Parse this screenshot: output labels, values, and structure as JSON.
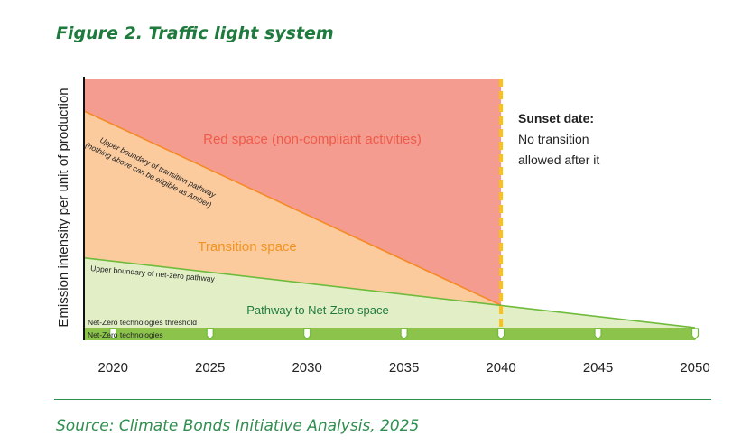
{
  "figure_title": "Figure 2. Traffic light system",
  "source": "Source: Climate Bonds Initiative Analysis, 2025",
  "colors": {
    "red_space": "#f59c90",
    "transition_space": "#fbcb9e",
    "netzero_space": "#e2efc6",
    "orange_line": "#f58a28",
    "green_line": "#6fbb3b",
    "green_band": "#8cc34a",
    "sunset_dash": "#f9c11b",
    "red_text": "#ee5b49",
    "orange_text": "#f29322",
    "green_text": "#1f7a3d"
  },
  "chart_data": {
    "type": "area",
    "title": "",
    "ylabel": "Emission intensity per unit of production",
    "xlabel": "",
    "x_ticks": [
      2020,
      2025,
      2030,
      2035,
      2040,
      2045,
      2050
    ],
    "xlim": [
      2018.5,
      2050
    ],
    "ylim": [
      0,
      100
    ],
    "y_ticks_shown": false,
    "grid": false,
    "series": [
      {
        "name": "Upper boundary of transition pathway",
        "x": [
          2018.5,
          2040
        ],
        "y": [
          87,
          9
        ]
      },
      {
        "name": "Upper boundary of net-zero pathway",
        "x": [
          2018.5,
          2050
        ],
        "y": [
          28,
          0
        ]
      }
    ],
    "sunset_year": 2040,
    "regions": {
      "red": "Red space (non-compliant activities)",
      "transition": "Transition space",
      "netzero": "Pathway to Net-Zero space"
    },
    "annotations": {
      "sunset_title": "Sunset date:",
      "sunset_line1": "No transition",
      "sunset_line2": "allowed after it",
      "transition_boundary_line1": "Upper boundary of transition pathway",
      "transition_boundary_line2": "(nothing above can be eligible as Amber)",
      "netzero_boundary": "Upper boundary of net-zero pathway",
      "threshold": "Net-Zero technologies threshold",
      "technologies": "Net-Zero technologies"
    }
  }
}
